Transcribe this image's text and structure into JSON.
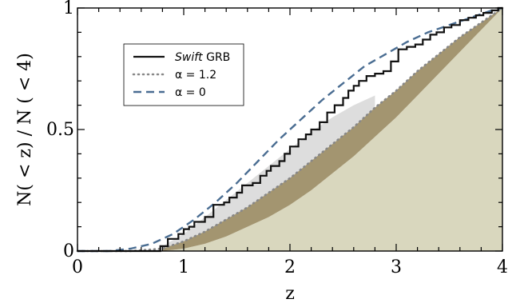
{
  "chart_data": {
    "type": "line",
    "xlabel": "z",
    "ylabel": "N( < z) / N ( < 4)",
    "xlim": [
      0,
      4
    ],
    "ylim": [
      0,
      1
    ],
    "xticks": [
      "0",
      "1",
      "2",
      "3",
      "4"
    ],
    "yticks": [
      "0",
      "0.5",
      "1"
    ],
    "grid": false,
    "legend_position": "upper-left",
    "legend": [
      {
        "name_italic": "Swift",
        "name_rest": " GRB",
        "style": "solid",
        "color": "#111111"
      },
      {
        "name_italic": "",
        "name_rest": "α = 1.2",
        "style": "dotted",
        "color": "#888888"
      },
      {
        "name_italic": "",
        "name_rest": "α = 0",
        "style": "dashed",
        "color": "#4a6d92"
      }
    ],
    "series": [
      {
        "key": "swift_grb",
        "x": [
          0,
          0.78,
          0.78,
          0.85,
          0.85,
          0.95,
          0.95,
          1.0,
          1.0,
          1.05,
          1.05,
          1.1,
          1.1,
          1.2,
          1.2,
          1.28,
          1.28,
          1.38,
          1.38,
          1.43,
          1.43,
          1.5,
          1.5,
          1.55,
          1.55,
          1.65,
          1.65,
          1.72,
          1.72,
          1.78,
          1.78,
          1.82,
          1.82,
          1.9,
          1.9,
          1.95,
          1.95,
          2.0,
          2.0,
          2.08,
          2.08,
          2.15,
          2.15,
          2.2,
          2.2,
          2.28,
          2.28,
          2.35,
          2.35,
          2.42,
          2.42,
          2.5,
          2.5,
          2.55,
          2.55,
          2.6,
          2.6,
          2.65,
          2.65,
          2.72,
          2.72,
          2.8,
          2.8,
          2.88,
          2.88,
          2.95,
          2.95,
          3.02,
          3.02,
          3.1,
          3.1,
          3.18,
          3.18,
          3.25,
          3.25,
          3.32,
          3.32,
          3.38,
          3.38,
          3.45,
          3.45,
          3.52,
          3.52,
          3.6,
          3.6,
          3.68,
          3.68,
          3.75,
          3.75,
          3.82,
          3.82,
          3.9,
          3.9,
          3.96,
          3.96,
          4.0
        ],
        "y": [
          0,
          0,
          0.02,
          0.02,
          0.05,
          0.05,
          0.07,
          0.07,
          0.09,
          0.09,
          0.1,
          0.1,
          0.12,
          0.12,
          0.14,
          0.14,
          0.19,
          0.19,
          0.2,
          0.2,
          0.22,
          0.22,
          0.24,
          0.24,
          0.27,
          0.27,
          0.28,
          0.28,
          0.31,
          0.31,
          0.33,
          0.33,
          0.35,
          0.35,
          0.37,
          0.37,
          0.4,
          0.4,
          0.43,
          0.43,
          0.46,
          0.46,
          0.48,
          0.48,
          0.5,
          0.5,
          0.53,
          0.53,
          0.57,
          0.57,
          0.6,
          0.6,
          0.63,
          0.63,
          0.66,
          0.66,
          0.68,
          0.68,
          0.7,
          0.7,
          0.72,
          0.72,
          0.73,
          0.73,
          0.74,
          0.74,
          0.78,
          0.78,
          0.83,
          0.83,
          0.84,
          0.84,
          0.85,
          0.85,
          0.87,
          0.87,
          0.89,
          0.89,
          0.9,
          0.9,
          0.92,
          0.92,
          0.93,
          0.93,
          0.95,
          0.95,
          0.96,
          0.96,
          0.97,
          0.97,
          0.98,
          0.98,
          0.99,
          0.99,
          1.0,
          1.0
        ]
      },
      {
        "key": "alpha_1_2",
        "x": [
          0,
          0.5,
          0.8,
          1.0,
          1.2,
          1.4,
          1.6,
          1.8,
          2.0,
          2.2,
          2.4,
          2.6,
          2.8,
          3.0,
          3.2,
          3.4,
          3.6,
          3.8,
          4.0
        ],
        "y": [
          0,
          0.0,
          0.01,
          0.04,
          0.08,
          0.13,
          0.18,
          0.24,
          0.3,
          0.37,
          0.44,
          0.51,
          0.59,
          0.66,
          0.74,
          0.81,
          0.88,
          0.94,
          1.0
        ]
      },
      {
        "key": "alpha_0",
        "x": [
          0,
          0.3,
          0.5,
          0.7,
          0.9,
          1.1,
          1.3,
          1.5,
          1.7,
          1.9,
          2.1,
          2.3,
          2.5,
          2.7,
          2.9,
          3.1,
          3.3,
          3.5,
          3.7,
          3.9,
          4.0
        ],
        "y": [
          0,
          0.0,
          0.01,
          0.03,
          0.07,
          0.13,
          0.2,
          0.28,
          0.37,
          0.46,
          0.54,
          0.62,
          0.69,
          0.76,
          0.81,
          0.86,
          0.9,
          0.93,
          0.96,
          0.99,
          1.0
        ]
      }
    ],
    "bands": [
      {
        "key": "light_band",
        "color": "#dddddd",
        "x": [
          0.8,
          1.0,
          1.2,
          1.4,
          1.6,
          1.8,
          2.0,
          2.2,
          2.4,
          2.6,
          2.8
        ],
        "upper": [
          0.02,
          0.07,
          0.14,
          0.21,
          0.28,
          0.35,
          0.42,
          0.49,
          0.55,
          0.6,
          0.64
        ],
        "lower": [
          0.01,
          0.04,
          0.08,
          0.13,
          0.18,
          0.24,
          0.3,
          0.37,
          0.44,
          0.51,
          0.59
        ]
      },
      {
        "key": "dark_band",
        "color": "#a39570",
        "x": [
          0.8,
          1.0,
          1.2,
          1.4,
          1.6,
          1.8,
          2.0,
          2.2,
          2.4,
          2.6,
          2.8,
          3.0,
          3.2,
          3.4,
          3.6,
          3.8,
          4.0
        ],
        "upper": [
          0.01,
          0.04,
          0.08,
          0.13,
          0.18,
          0.24,
          0.3,
          0.37,
          0.44,
          0.51,
          0.59,
          0.66,
          0.74,
          0.81,
          0.88,
          0.94,
          1.0
        ],
        "lower": [
          0.0,
          0.01,
          0.03,
          0.06,
          0.1,
          0.14,
          0.19,
          0.25,
          0.32,
          0.39,
          0.47,
          0.55,
          0.64,
          0.73,
          0.82,
          0.91,
          1.0
        ]
      },
      {
        "key": "base_fill",
        "color": "#d9d7be",
        "x": [
          0,
          0.8,
          1.0,
          1.2,
          1.4,
          1.6,
          1.8,
          2.0,
          2.2,
          2.4,
          2.6,
          2.8,
          3.0,
          3.2,
          3.4,
          3.6,
          3.8,
          4.0
        ],
        "upper": [
          0.0,
          0.0,
          0.01,
          0.03,
          0.06,
          0.1,
          0.14,
          0.19,
          0.25,
          0.32,
          0.39,
          0.47,
          0.55,
          0.64,
          0.73,
          0.82,
          0.91,
          1.0
        ],
        "lower": [
          0,
          0,
          0,
          0,
          0,
          0,
          0,
          0,
          0,
          0,
          0,
          0,
          0,
          0,
          0,
          0,
          0,
          0
        ]
      }
    ]
  }
}
